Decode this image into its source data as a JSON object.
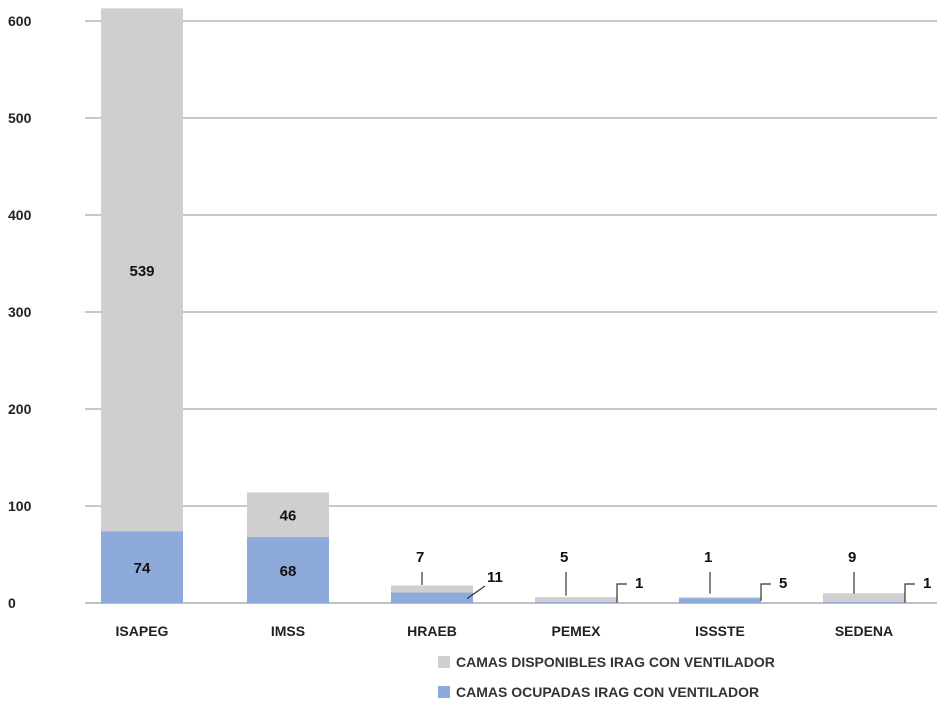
{
  "chart_data": {
    "type": "bar",
    "stacked": true,
    "categories": [
      "ISAPEG",
      "IMSS",
      "HRAEB",
      "PEMEX",
      "ISSSTE",
      "SEDENA"
    ],
    "series": [
      {
        "name": "CAMAS OCUPADAS IRAG CON VENTILADOR",
        "values": [
          74,
          68,
          11,
          1,
          5,
          1
        ],
        "color": "#8eaadb"
      },
      {
        "name": "CAMAS DISPONIBLES IRAG  CON VENTILADOR",
        "values": [
          539,
          46,
          7,
          5,
          1,
          9
        ],
        "color": "#d0cece"
      }
    ],
    "y_ticks": [
      0,
      100,
      200,
      300,
      400,
      500,
      600
    ],
    "ylim": [
      0,
      610
    ],
    "grid": true,
    "legend_position": "bottom-right",
    "title": "",
    "xlabel": "",
    "ylabel": ""
  }
}
